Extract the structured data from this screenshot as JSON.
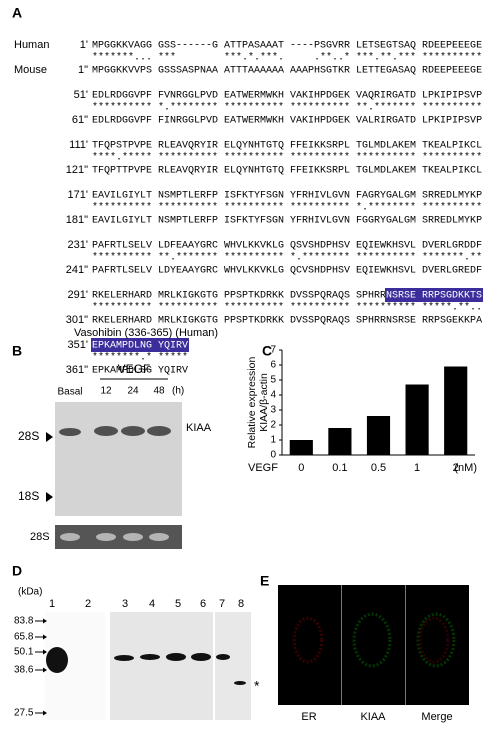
{
  "panel_a": {
    "label": "A",
    "human_label": "Human",
    "mouse_label": "Mouse",
    "annotation": "Vasohibin (336-365) (Human)",
    "blocks": [
      {
        "human_pos": "1'",
        "human_seq": "MPGGKKVAGG GSS------G ATTPASAAAT ----PSGVRR LETSEGTSAQ RDEEPEEEGE",
        "match": "*******... ***        ***.*.***.     .**..* ***.**.*** **********",
        "mouse_pos": "1\"",
        "mouse_seq": "MPGGKKVVPS GSSSASPNAA ATTTAAAAAA AAAPHSGTKR LETTEGASAQ RDEEPEEEGE"
      },
      {
        "human_pos": "51'",
        "human_seq": "EDLRDGGVPF FVNRGGLPVD EATWERMWKH VAKIHPDGEK VAQRIRGATD LPKIPIPSVP",
        "match": "********** *.******** ********** ********** **.******* **********",
        "mouse_pos": "61\"",
        "mouse_seq": "EDLRDGGVPF FINRGGLPVD EATWERMWKH VAKIHPDGEK VALRIRGATD LPKIPIPSVP"
      },
      {
        "human_pos": "111'",
        "human_seq": "TFQPSTPVPE RLEAVQRYIR ELQYNHTGTQ FFEIKKSRPL TGLMDLAKEM TKEALPIKCL",
        "match": "****.***** ********** ********** ********** ********** **********",
        "mouse_pos": "121\"",
        "mouse_seq": "TFQPTTPVPE RLEAVQRYIR ELQYNHTGTQ FFEIKKSRPL TGLMDLAKEM TKEALPIKCL"
      },
      {
        "human_pos": "171'",
        "human_seq": "EAVILGIYLT NSMPTLERFP ISFKTYFSGN YFRHIVLGVN FAGRYGALGM SRREDLMYKP",
        "match": "********** ********** ********** ********** *.******** **********",
        "mouse_pos": "181\"",
        "mouse_seq": "EAVILGIYLT NSMPTLERFP ISFKTYFSGN YFRHIVLGVN FGGRYGALGM SRREDLMYKP"
      },
      {
        "human_pos": "231'",
        "human_seq": "PAFRTLSELV LDFEAAYGRC WHVLKKVKLG QSVSHDPHSV EQIEWKHSVL DVERLGRDDF",
        "match": "********** **.******* ********** *.******** ********** *******.**",
        "mouse_pos": "241\"",
        "mouse_seq": "PAFRTLSELV LDYEAAYGRC WHVLKKVKLG QCVSHDPHSV EQIEWKHSVL DVERLGREDF"
      },
      {
        "human_pos": "291'",
        "human_seq": "RKELERHARD MRLKIGKGTG PPSPTKDRKK DVSSPQRAQS SPHRR",
        "highlight": "NSRSE RRPSGDKKTS",
        "match": "********** ********** ********** ********** ********** *****.**..",
        "mouse_pos": "301\"",
        "mouse_seq": "RKELERHARD MRLKIGKGTG PPSPTKDRKK DVSSPQRAQS SPHRRNSRSE RRPSGEKKPA"
      },
      {
        "human_pos": "351'",
        "highlight": "EPKAMPDLNG YQIRV",
        "match": "********.* *****",
        "mouse_pos": "361\"",
        "mouse_seq": "EPKAMPDLSG YQIRV"
      }
    ]
  },
  "panel_b": {
    "label": "B",
    "treatment": "VEGF",
    "basal": "Basal",
    "times": [
      "12",
      "24",
      "48"
    ],
    "time_unit": "(h)",
    "band": "KIAA",
    "marker_28s": "28S",
    "marker_18s": "18S",
    "loading": "28S"
  },
  "chart_data": {
    "type": "bar",
    "panel_label": "C",
    "y_label": [
      "Relative expression",
      "KIAA/β-actin"
    ],
    "x_label": "VEGF",
    "x_unit": "(nM)",
    "categories": [
      "0",
      "0.1",
      "0.5",
      "1",
      "2"
    ],
    "values": [
      1,
      1.8,
      2.6,
      4.7,
      5.9
    ],
    "color": "#000000",
    "ylim": [
      0,
      7
    ],
    "yticks": [
      0,
      1,
      2,
      3,
      4,
      5,
      6,
      7
    ]
  },
  "panel_d": {
    "label": "D",
    "unit": "(kDa)",
    "markers": [
      "83.8",
      "65.8",
      "50.1",
      "38.6",
      "27.5"
    ],
    "lanes": [
      "1",
      "2",
      "3",
      "4",
      "5",
      "6",
      "7",
      "8"
    ],
    "note": "*"
  },
  "panel_e": {
    "label": "E",
    "channels": [
      "ER",
      "KIAA",
      "Merge"
    ]
  }
}
